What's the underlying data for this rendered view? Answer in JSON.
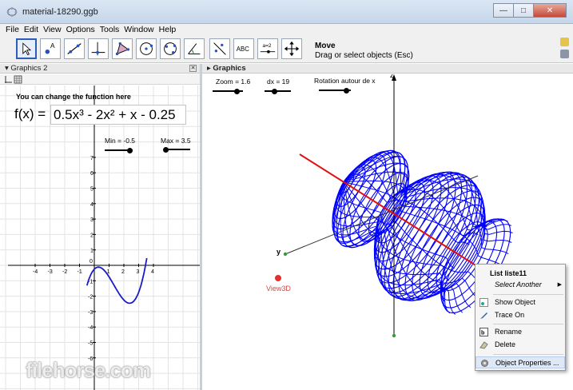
{
  "window": {
    "title": "material-18290.ggb"
  },
  "menu": [
    "File",
    "Edit",
    "View",
    "Options",
    "Tools",
    "Window",
    "Help"
  ],
  "toolbar": {
    "tools": [
      "move-tool",
      "point-tool",
      "line-tool",
      "perpendicular-tool",
      "polygon-tool",
      "circle-tool",
      "conic-tool",
      "angle-tool",
      "reflect-tool",
      "text-tool",
      "slider-tool",
      "move-view-tool"
    ],
    "text_tool_label": "ABC",
    "slider_tool_label": "a=2",
    "active_tool_name": "Move",
    "active_tool_desc": "Drag or select objects (Esc)"
  },
  "graphics2": {
    "header": "Graphics 2",
    "hint": "You can change the function here",
    "fx_label": "f(x) =",
    "fx_value": "0.5x³ - 2x² + x - 0.25",
    "slider_min": "Min = -0.5",
    "slider_max": "Max = 3.5",
    "x_ticks": [
      "-4",
      "-3",
      "-2",
      "-1",
      "0",
      "1",
      "2",
      "3",
      "4"
    ],
    "y_ticks": [
      "7",
      "6",
      "5",
      "4",
      "3",
      "2",
      "1",
      "0",
      "-1",
      "-2",
      "-3",
      "-4",
      "-5",
      "-6"
    ]
  },
  "graphics3d": {
    "header": "Graphics",
    "zoom": "Zoom = 1.6",
    "dx": "dx = 19",
    "rotation": "Rotation autour de x",
    "axis_z": "z",
    "axis_y": "y",
    "view3d": "View3D"
  },
  "context_menu": {
    "title": "List liste11",
    "select_another": "Select Another",
    "show_object": "Show Object",
    "trace_on": "Trace On",
    "rename": "Rename",
    "delete": "Delete",
    "properties": "Object Properties ..."
  },
  "watermark": "filehorse.com",
  "colors": {
    "curve": "#1b1bc8",
    "surface": "#0000ff",
    "red_axis": "#e01010",
    "accent": "#2b5fb6"
  }
}
